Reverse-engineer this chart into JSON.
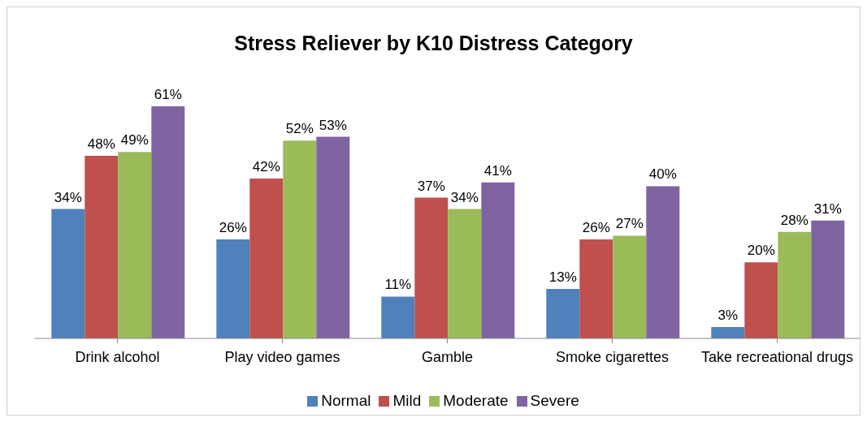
{
  "chart_data": {
    "type": "bar",
    "title": "Stress Reliever by K10 Distress Category",
    "categories": [
      "Drink alcohol",
      "Play video games",
      "Gamble",
      "Smoke cigarettes",
      "Take recreational drugs"
    ],
    "series": [
      {
        "name": "Normal",
        "color": "#4f81bd",
        "values": [
          34,
          26,
          11,
          13,
          3
        ],
        "value_labels": [
          "34%",
          "26%",
          "11%",
          "13%",
          "3%"
        ]
      },
      {
        "name": "Mild",
        "color": "#c0504d",
        "values": [
          48,
          42,
          37,
          26,
          20
        ],
        "value_labels": [
          "48%",
          "42%",
          "37%",
          "26%",
          "20%"
        ]
      },
      {
        "name": "Moderate",
        "color": "#9bbb59",
        "values": [
          49,
          52,
          34,
          27,
          28
        ],
        "value_labels": [
          "49%",
          "52%",
          "34%",
          "27%",
          "28%"
        ]
      },
      {
        "name": "Severe",
        "color": "#8064a2",
        "values": [
          61,
          53,
          41,
          40,
          31
        ],
        "value_labels": [
          "61%",
          "53%",
          "41%",
          "40%",
          "31%"
        ]
      }
    ],
    "grid": false,
    "legend": "bottom"
  }
}
